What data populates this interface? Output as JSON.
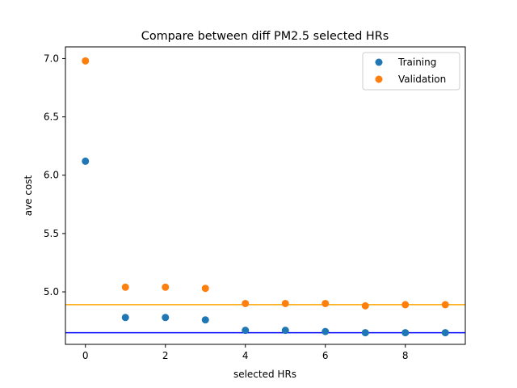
{
  "chart_data": {
    "type": "scatter",
    "title": "Compare between diff PM2.5 selected HRs",
    "xlabel": "selected HRs",
    "ylabel": "ave cost",
    "xlim": [
      -0.5,
      9.5
    ],
    "ylim": [
      4.55,
      7.1
    ],
    "xticks": [
      0,
      2,
      4,
      6,
      8
    ],
    "yticks": [
      5.0,
      5.5,
      6.0,
      6.5,
      7.0
    ],
    "grid": false,
    "legend_position": "top-right",
    "series": [
      {
        "name": "Training",
        "color": "#1f77b4",
        "x": [
          0,
          1,
          2,
          3,
          4,
          5,
          6,
          7,
          8,
          9
        ],
        "y": [
          6.12,
          4.78,
          4.78,
          4.76,
          4.67,
          4.67,
          4.66,
          4.65,
          4.65,
          4.65
        ]
      },
      {
        "name": "Validation",
        "color": "#ff7f0e",
        "x": [
          0,
          1,
          2,
          3,
          4,
          5,
          6,
          7,
          8,
          9
        ],
        "y": [
          6.98,
          5.04,
          5.04,
          5.03,
          4.9,
          4.9,
          4.9,
          4.88,
          4.89,
          4.89
        ]
      }
    ],
    "reference_lines": [
      {
        "y": 4.65,
        "color": "#0000ff"
      },
      {
        "y": 4.89,
        "color": "#ffa500"
      }
    ]
  }
}
